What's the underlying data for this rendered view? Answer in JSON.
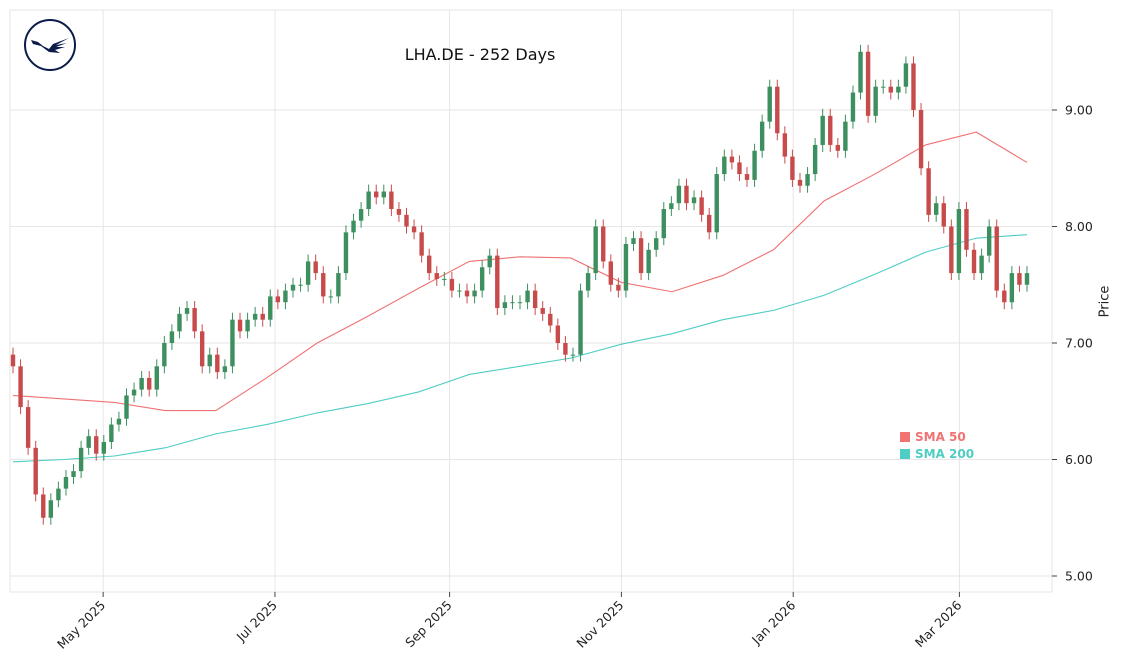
{
  "chart_data": {
    "type": "candlestick",
    "title": "LHA.DE - 252 Days",
    "ylabel": "Price",
    "xlabel": "",
    "ylim": [
      4.87,
      9.87
    ],
    "y_ticks": [
      "5.00",
      "6.00",
      "7.00",
      "8.00",
      "9.00"
    ],
    "x_ticks": [
      {
        "label": "May 2025",
        "date": "2025-05-01"
      },
      {
        "label": "Jul 2025",
        "date": "2025-07-01"
      },
      {
        "label": "Sep 2025",
        "date": "2025-09-01"
      },
      {
        "label": "Nov 2025",
        "date": "2025-11-01"
      },
      {
        "label": "Jan 2026",
        "date": "2026-01-01"
      },
      {
        "label": "Mar 2026",
        "date": "2026-03-01"
      }
    ],
    "date_range": [
      "2025-03-30",
      "2026-03-25"
    ],
    "grid": true,
    "legend_position": "bottom-right",
    "colors": {
      "up": "#3d8f5f",
      "down": "#c84b4b",
      "sma50": "#f07272",
      "sma200": "#4ecdc4",
      "logo": "#0b1b4a"
    },
    "first_open": 6.9,
    "closes": [
      6.8,
      6.45,
      6.1,
      5.7,
      5.5,
      5.65,
      5.75,
      5.85,
      5.9,
      6.1,
      6.2,
      6.05,
      6.15,
      6.3,
      6.35,
      6.55,
      6.6,
      6.7,
      6.6,
      6.8,
      7.0,
      7.1,
      7.25,
      7.3,
      7.1,
      6.8,
      6.9,
      6.75,
      6.8,
      7.2,
      7.1,
      7.2,
      7.25,
      7.2,
      7.4,
      7.35,
      7.45,
      7.5,
      7.5,
      7.7,
      7.6,
      7.4,
      7.4,
      7.6,
      7.95,
      8.05,
      8.15,
      8.3,
      8.25,
      8.3,
      8.15,
      8.1,
      8.0,
      7.95,
      7.75,
      7.6,
      7.55,
      7.55,
      7.45,
      7.45,
      7.4,
      7.45,
      7.65,
      7.75,
      7.3,
      7.35,
      7.35,
      7.35,
      7.45,
      7.3,
      7.25,
      7.15,
      7.0,
      6.9,
      6.9,
      7.45,
      7.6,
      8.0,
      7.7,
      7.5,
      7.45,
      7.85,
      7.9,
      7.6,
      7.8,
      7.9,
      8.15,
      8.2,
      8.35,
      8.2,
      8.25,
      8.1,
      7.95,
      8.45,
      8.6,
      8.55,
      8.45,
      8.4,
      8.65,
      8.9,
      9.2,
      8.8,
      8.6,
      8.4,
      8.35,
      8.45,
      8.7,
      8.95,
      8.7,
      8.65,
      8.9,
      9.15,
      9.5,
      8.95,
      9.2,
      9.2,
      9.15,
      9.2,
      9.4,
      9.0,
      8.5,
      8.1,
      8.2,
      8.0,
      7.6,
      8.15,
      7.8,
      7.6,
      7.75,
      8.0,
      7.45,
      7.35,
      7.6,
      7.5,
      7.6
    ],
    "series": [
      {
        "name": "SMA 50",
        "values": [
          6.55,
          6.52,
          6.49,
          6.42,
          6.42,
          6.7,
          7.0,
          7.23,
          7.47,
          7.7,
          7.74,
          7.73,
          7.52,
          7.44,
          7.58,
          7.8,
          8.22,
          8.45,
          8.7,
          8.81,
          8.55
        ]
      },
      {
        "name": "SMA 200",
        "values": [
          5.98,
          6.0,
          6.03,
          6.1,
          6.22,
          6.3,
          6.4,
          6.48,
          6.58,
          6.73,
          6.8,
          6.87,
          6.99,
          7.08,
          7.2,
          7.28,
          7.41,
          7.59,
          7.78,
          7.9,
          7.93
        ]
      }
    ]
  }
}
